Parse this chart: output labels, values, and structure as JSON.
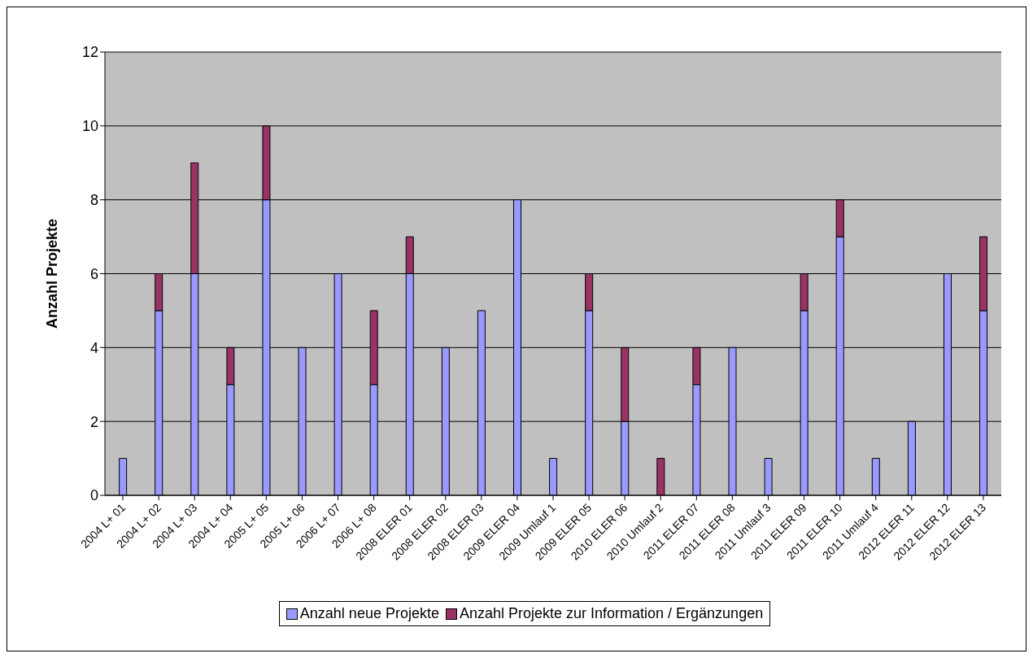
{
  "chart_data": {
    "type": "bar",
    "ylabel": "Anzahl Projekte",
    "stacked": true,
    "categories": [
      "2004 L+ 01",
      "2004 L+ 02",
      "2004 L+ 03",
      "2004 L+ 04",
      "2005 L+ 05",
      "2005 L+ 06",
      "2006 L+ 07",
      "2006 L+ 08",
      "2008 ELER 01",
      "2008 ELER 02",
      "2008 ELER 03",
      "2009 ELER 04",
      "2009 Umlauf 1",
      "2009 ELER 05",
      "2010 ELER 06",
      "2010 Umlauf 2",
      "2011 ELER 07",
      "2011 ELER 08",
      "2011 Umlauf 3",
      "2011 ELER 09",
      "2011 ELER 10",
      "2011 Umlauf 4",
      "2012 ELER 11",
      "2012 ELER 12",
      "2012 ELER 13"
    ],
    "series": [
      {
        "name": "Anzahl neue Projekte",
        "color": "#9999ff",
        "values": [
          1,
          5,
          6,
          3,
          8,
          4,
          6,
          3,
          6,
          4,
          5,
          8,
          1,
          5,
          2,
          0,
          3,
          4,
          1,
          5,
          7,
          1,
          2,
          6,
          5
        ]
      },
      {
        "name": "Anzahl Projekte zur Information / Ergänzungen",
        "color": "#993366",
        "values": [
          0,
          1,
          3,
          1,
          2,
          0,
          0,
          2,
          1,
          0,
          0,
          0,
          0,
          1,
          2,
          1,
          1,
          0,
          0,
          1,
          1,
          0,
          0,
          0,
          2
        ]
      }
    ],
    "ylim": [
      0,
      12
    ],
    "yticks": [
      0,
      2,
      4,
      6,
      8,
      10,
      12
    ],
    "grid": "y",
    "legend": "bottom"
  }
}
